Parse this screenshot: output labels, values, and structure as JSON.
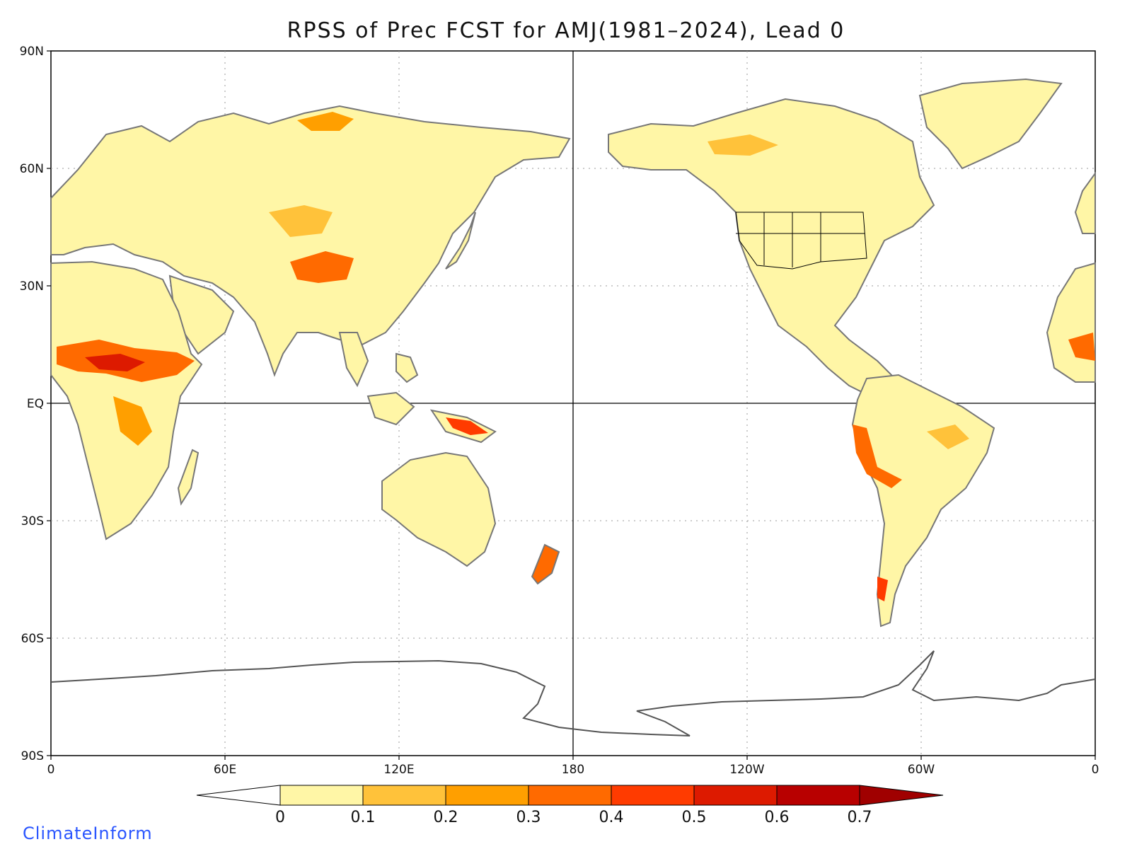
{
  "title": "RPSS of Prec FCST for AMJ(1981–2024), Lead 0",
  "brand": "ClimateInform",
  "axes": {
    "lat_labels": [
      "90N",
      "60N",
      "30N",
      "EQ",
      "30S",
      "60S",
      "90S"
    ],
    "lon_labels": [
      "0",
      "60E",
      "120E",
      "180",
      "120W",
      "60W",
      "0"
    ]
  },
  "colorbar": {
    "labels": [
      "0",
      "0.1",
      "0.2",
      "0.3",
      "0.4",
      "0.5",
      "0.6",
      "0.7"
    ],
    "colors": [
      "#fff6a6",
      "#ffc23a",
      "#ff9f00",
      "#ff6a00",
      "#ff3b00",
      "#dd1a00",
      "#b80000"
    ],
    "under_color": "#ffffff",
    "over_color": "#a00000"
  },
  "land_color": "#ffffff",
  "ocean_color": "#ffffff",
  "coast_color": "#777777"
}
